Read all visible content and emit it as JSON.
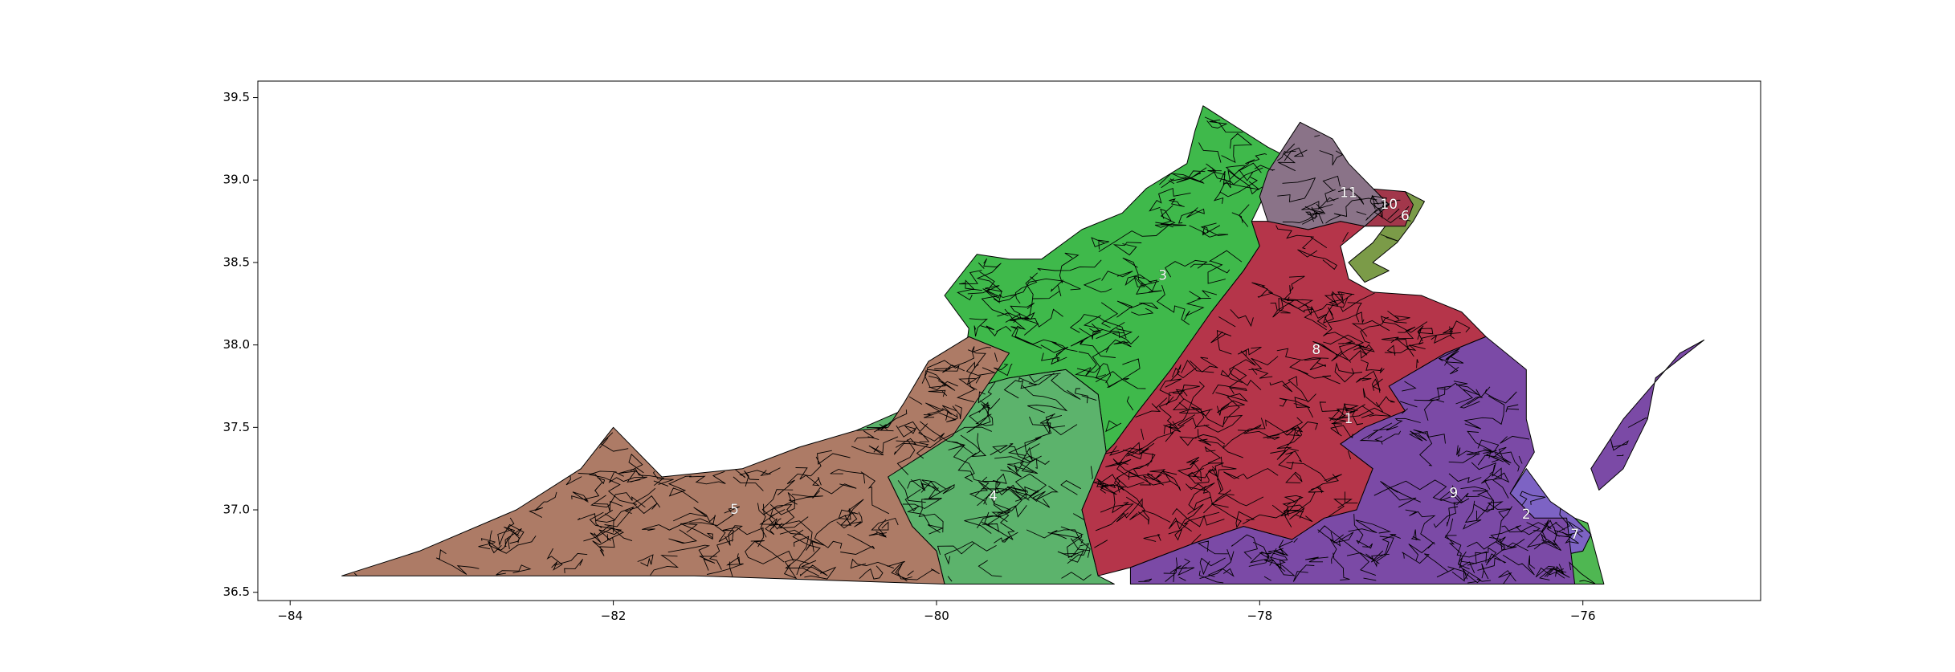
{
  "chart_data": {
    "type": "map",
    "x_ticks": [
      "−84",
      "−82",
      "−80",
      "−78",
      "−76"
    ],
    "x_tick_values": [
      -84,
      -82,
      -80,
      -78,
      -76
    ],
    "y_ticks": [
      "36.5",
      "37.0",
      "37.5",
      "38.0",
      "38.5",
      "39.0",
      "39.5"
    ],
    "y_tick_values": [
      36.5,
      37.0,
      37.5,
      38.0,
      38.5,
      39.0,
      39.5
    ],
    "xlim": [
      -84.2,
      -74.9
    ],
    "ylim": [
      36.45,
      39.6
    ],
    "districts": [
      {
        "label": "1",
        "color": "#3a47b8",
        "label_lon": -77.45,
        "label_lat": 37.55
      },
      {
        "label": "2",
        "color": "#7d63c4",
        "label_lon": -76.35,
        "label_lat": 36.97
      },
      {
        "label": "3",
        "color": "#3fb94b",
        "label_lon": -78.6,
        "label_lat": 38.42
      },
      {
        "label": "4",
        "color": "#5cb36c",
        "label_lon": -79.65,
        "label_lat": 37.08
      },
      {
        "label": "5",
        "color": "#ad7b66",
        "label_lon": -81.25,
        "label_lat": 37.0
      },
      {
        "label": "6",
        "color": "#7b9b48",
        "label_lon": -77.1,
        "label_lat": 38.78
      },
      {
        "label": "7",
        "color": "#4fb752",
        "label_lon": -76.05,
        "label_lat": 36.85
      },
      {
        "label": "8",
        "color": "#b5354a",
        "label_lon": -77.65,
        "label_lat": 37.97
      },
      {
        "label": "9",
        "color": "#7b4aa6",
        "label_lon": -76.8,
        "label_lat": 37.1
      },
      {
        "label": "10",
        "color": "#a2374b",
        "label_lon": -77.2,
        "label_lat": 38.85
      },
      {
        "label": "11",
        "color": "#8a7388",
        "label_lon": -77.45,
        "label_lat": 38.92
      }
    ]
  }
}
